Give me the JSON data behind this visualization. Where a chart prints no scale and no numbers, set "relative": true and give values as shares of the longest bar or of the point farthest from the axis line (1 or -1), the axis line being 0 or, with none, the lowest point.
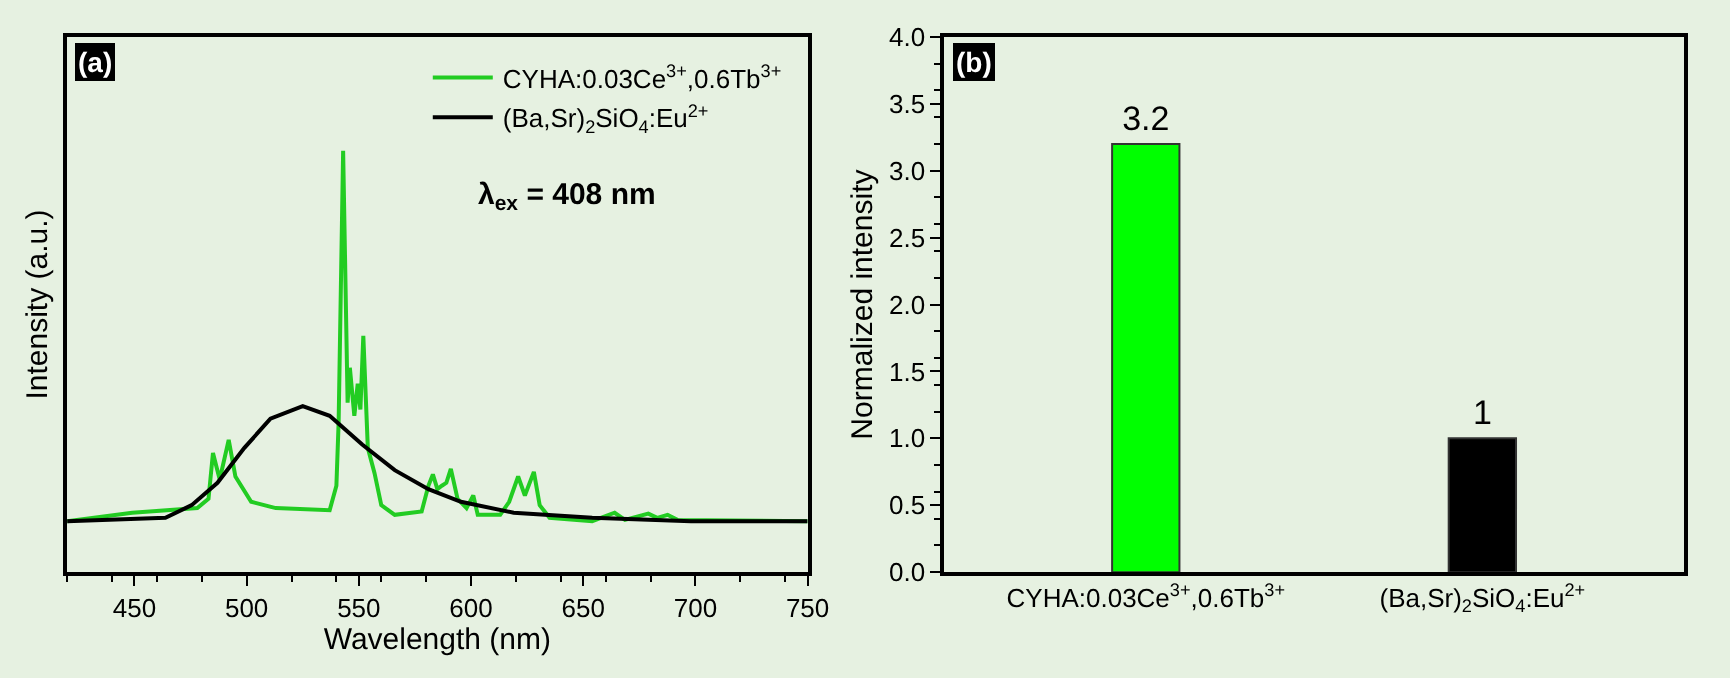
{
  "chart_data": [
    {
      "type": "line",
      "relative": true,
      "xlabel": "Wavelength (nm)",
      "ylabel": "Intensity (a.u.)",
      "xlim": [
        420,
        750
      ],
      "xticks": [
        450,
        500,
        550,
        600,
        650,
        700,
        750
      ],
      "tick_labels": "x",
      "legend": "top right",
      "grid": false,
      "marker": "none",
      "line_style": "solid",
      "annotations": [
        "(a)",
        "λ$_{ex}$ = 408 nm"
      ],
      "series": [
        {
          "name": "CYHA:0.03Ce$^{3+}$,0.6Tb$^{3+}$",
          "color": "#22cc22",
          "x": [
            420,
            449,
            478,
            483,
            485,
            488,
            492,
            495,
            502,
            513,
            537,
            540,
            541,
            543,
            545,
            546,
            548,
            549.5,
            550.7,
            552,
            554,
            557,
            560,
            566,
            578,
            581,
            583,
            585,
            587,
            589,
            591,
            594,
            598,
            601,
            603,
            613,
            617,
            621,
            624,
            628,
            630.6,
            635,
            654,
            664,
            668.6,
            679,
            683,
            687.6,
            692,
            750
          ],
          "values": [
            0.121,
            0.141,
            0.152,
            0.174,
            0.283,
            0.22,
            0.314,
            0.227,
            0.167,
            0.152,
            0.147,
            0.205,
            0.356,
            1.0,
            0.402,
            0.485,
            0.371,
            0.447,
            0.386,
            0.561,
            0.295,
            0.235,
            0.159,
            0.136,
            0.144,
            0.205,
            0.232,
            0.197,
            0.205,
            0.212,
            0.245,
            0.174,
            0.152,
            0.182,
            0.136,
            0.136,
            0.167,
            0.227,
            0.182,
            0.238,
            0.159,
            0.129,
            0.121,
            0.141,
            0.124,
            0.139,
            0.129,
            0.136,
            0.124,
            0.121
          ]
        },
        {
          "name": "(Ba,Sr)$_{2}$SiO$_{4}$:Eu$^{2+}$",
          "color": "#000000",
          "x": [
            420,
            463.8,
            475.5,
            487,
            499,
            510.6,
            525,
            537,
            551.5,
            566,
            581,
            595.5,
            619,
            654,
            698,
            750
          ],
          "values": [
            0.121,
            0.129,
            0.159,
            0.212,
            0.295,
            0.364,
            0.394,
            0.371,
            0.303,
            0.242,
            0.197,
            0.167,
            0.141,
            0.129,
            0.121,
            0.121
          ]
        }
      ]
    },
    {
      "type": "bar",
      "ylabel": "Normalized intensity",
      "categories": [
        "CYHA:0.03Ce$^{3+}$,0.6Tb$^{3+}$",
        "(Ba,Sr)$_{2}$SiO$_{4}$:Eu$^{2+}$"
      ],
      "values": [
        3.2,
        1
      ],
      "colors": [
        "#00ff00",
        "#000000"
      ],
      "data_labels": true,
      "ylim": [
        0,
        4
      ],
      "yticks": [
        {
          "value": 0,
          "label": "0.0"
        },
        {
          "value": 0.5,
          "label": "0.5"
        },
        {
          "value": 1,
          "label": "1.0"
        },
        {
          "value": 1.5,
          "label": "1.5"
        },
        {
          "value": 2,
          "label": "2.0"
        },
        {
          "value": 2.5,
          "label": "2.5"
        },
        {
          "value": 3,
          "label": "3.0"
        },
        {
          "value": 3.5,
          "label": "3.5"
        },
        {
          "value": 4,
          "label": "4.0"
        }
      ],
      "grid": false,
      "legend": false,
      "annotations": [
        "(b)"
      ]
    }
  ]
}
